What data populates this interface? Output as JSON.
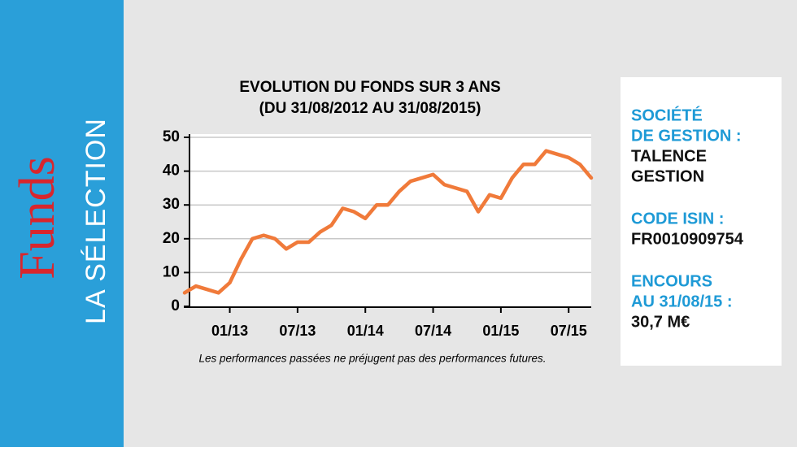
{
  "sidebar": {
    "title": "Funds",
    "subtitle": "LA SÉLECTION"
  },
  "chart_data": {
    "type": "line",
    "title": "EVOLUTION DU FONDS SUR 3 ANS",
    "subtitle": "(DU 31/08/2012 AU 31/08/2015)",
    "note": "Les performances passées ne préjugent pas des performances futures.",
    "x": [
      "09/12",
      "10/12",
      "11/12",
      "12/12",
      "01/13",
      "02/13",
      "03/13",
      "04/13",
      "05/13",
      "06/13",
      "07/13",
      "08/13",
      "09/13",
      "10/13",
      "11/13",
      "12/13",
      "01/14",
      "02/14",
      "03/14",
      "04/14",
      "05/14",
      "06/14",
      "07/14",
      "08/14",
      "09/14",
      "10/14",
      "11/14",
      "12/14",
      "01/15",
      "02/15",
      "03/15",
      "04/15",
      "05/15",
      "06/15",
      "07/15",
      "08/15",
      "09/15"
    ],
    "series": [
      {
        "color": "#f07a3a",
        "values": [
          4,
          6,
          5,
          4,
          7,
          14,
          20,
          21,
          20,
          17,
          19,
          19,
          22,
          24,
          29,
          28,
          26,
          30,
          30,
          34,
          37,
          38,
          39,
          36,
          35,
          34,
          28,
          33,
          32,
          38,
          42,
          42,
          46,
          45,
          44,
          42,
          38
        ]
      }
    ],
    "xticks": [
      "01/13",
      "07/13",
      "01/14",
      "07/14",
      "01/15",
      "07/15"
    ],
    "ylim": [
      0,
      50
    ],
    "yticks": [
      0,
      10,
      20,
      30,
      40,
      50
    ],
    "grid": true
  },
  "info": [
    {
      "label": [
        "SOCIÉTÉ",
        "DE GESTION :"
      ],
      "value": [
        "TALENCE",
        "GESTION"
      ]
    },
    {
      "label": [
        "CODE ISIN :"
      ],
      "value": [
        "FR0010909754"
      ]
    },
    {
      "label": [
        "ENCOURS",
        "AU 31/08/15 :"
      ],
      "value": [
        "30,7 M€"
      ]
    }
  ]
}
